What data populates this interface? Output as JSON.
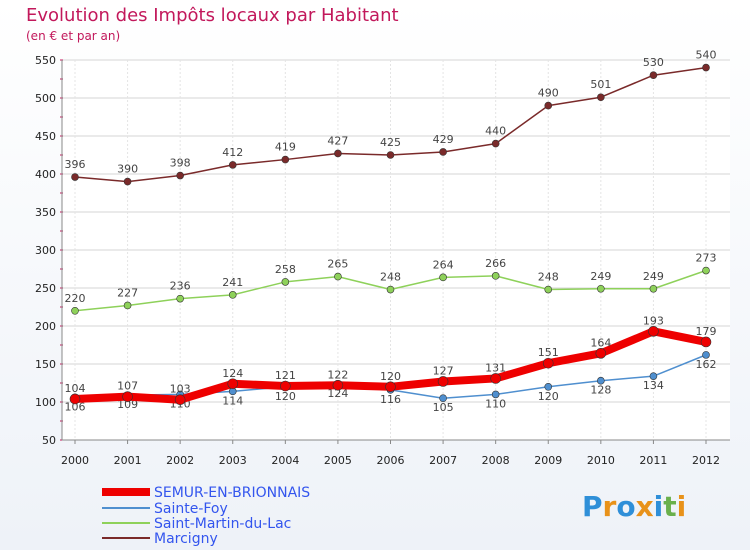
{
  "chart_data": {
    "type": "line",
    "title": "Evolution des Impôts locaux par Habitant",
    "subtitle": "(en € et par an)",
    "categories": [
      "2000",
      "2001",
      "2002",
      "2003",
      "2004",
      "2005",
      "2006",
      "2007",
      "2008",
      "2009",
      "2010",
      "2011",
      "2012"
    ],
    "ylim": [
      50,
      550
    ],
    "yticks": [
      50,
      100,
      150,
      200,
      250,
      300,
      350,
      400,
      450,
      500,
      550
    ],
    "grid": true,
    "legend_placement": "bottom-left",
    "series": [
      {
        "name": "SEMUR-EN-BRIONNAIS",
        "color": "#ee0000",
        "values": [
          104,
          107,
          103,
          124,
          121,
          122,
          120,
          127,
          131,
          151,
          164,
          193,
          179
        ],
        "labels": [
          "104",
          "107",
          "103",
          "124",
          "121",
          "122",
          "120",
          "127",
          "131",
          "151",
          "164",
          "193",
          "179"
        ]
      },
      {
        "name": "Sainte-Foy",
        "color": "#4f8fcf",
        "values": [
          106,
          109,
          110,
          114,
          120,
          124,
          116,
          105,
          110,
          120,
          128,
          134,
          162
        ],
        "labels": [
          "106",
          "109",
          "110",
          "114",
          "120",
          "124",
          "116",
          "105",
          "110",
          "120",
          "128",
          "134",
          "162"
        ]
      },
      {
        "name": "Saint-Martin-du-Lac",
        "color": "#8ed15a",
        "values": [
          220,
          227,
          236,
          241,
          258,
          265,
          248,
          264,
          266,
          248,
          249,
          249,
          273
        ],
        "labels": [
          "220",
          "227",
          "236",
          "241",
          "258",
          "265",
          "248",
          "264",
          "266",
          "248",
          "249",
          "249",
          "273"
        ]
      },
      {
        "name": "Marcigny",
        "color": "#7a2a2a",
        "values": [
          396,
          390,
          398,
          412,
          419,
          427,
          425,
          429,
          440,
          490,
          501,
          530,
          540
        ],
        "labels": [
          "396",
          "390",
          "398",
          "412",
          "419",
          "427",
          "425",
          "429",
          "440",
          "490",
          "501",
          "530",
          "540"
        ]
      }
    ]
  },
  "logo": {
    "text": "Proxiti",
    "letter_colors": [
      "#2f8fd8",
      "#e8921a",
      "#2f8fd8",
      "#e8921a",
      "#2f8fd8",
      "#6ab04c",
      "#e8921a"
    ]
  }
}
